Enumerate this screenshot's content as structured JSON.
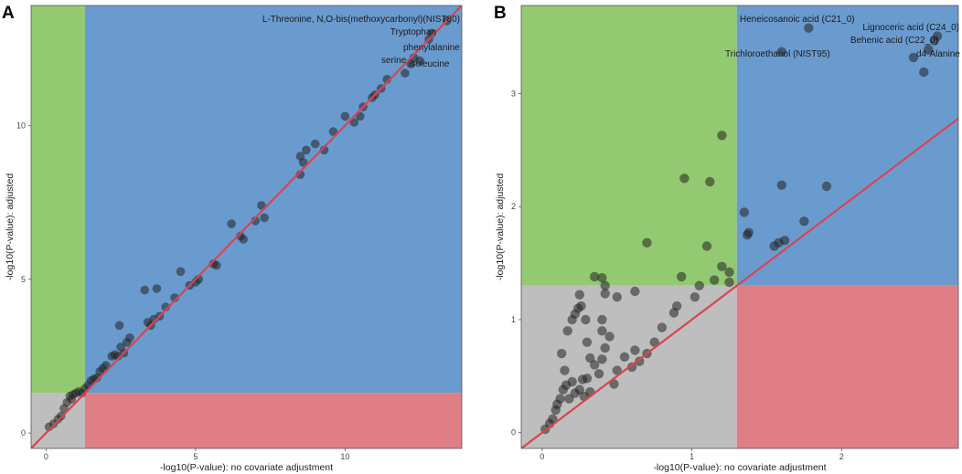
{
  "colors": {
    "green": "#93C970",
    "blue": "#6A9BCF",
    "red": "#E07E86",
    "gray": "#BEBEBE",
    "line": "#D94452",
    "point": "#222222"
  },
  "chart_data": [
    {
      "type": "scatter",
      "panel_label": "A",
      "xlabel": "-log10(P-value): no covariate adjustment",
      "ylabel": "-log10(P-value): adjusted",
      "xlim": [
        -0.5,
        13.9
      ],
      "ylim": [
        -0.5,
        13.9
      ],
      "xticks": [
        0,
        5,
        10
      ],
      "yticks": [
        0,
        5,
        10
      ],
      "threshold": 1.3,
      "reference_line": {
        "slope": 1,
        "intercept": 0
      },
      "annotations": [
        {
          "text": "L-Threonine, N,O-bis(methoxycarbonyl)(NIST80)",
          "x": 13.4,
          "y": 13.4
        },
        {
          "text": "Tryptophan",
          "x": 12.9,
          "y": 13.0
        },
        {
          "text": "phenylalanine",
          "x": 12.9,
          "y": 12.7
        },
        {
          "text": "serine",
          "x": 12.3,
          "y": 12.2
        },
        {
          "text": "isoleucine",
          "x": 12.5,
          "y": 12.1
        }
      ],
      "points": [
        {
          "x": 0.1,
          "y": 0.2
        },
        {
          "x": 0.25,
          "y": 0.3
        },
        {
          "x": 0.4,
          "y": 0.45
        },
        {
          "x": 0.5,
          "y": 0.55
        },
        {
          "x": 0.6,
          "y": 0.8
        },
        {
          "x": 0.7,
          "y": 1.0
        },
        {
          "x": 0.8,
          "y": 1.2
        },
        {
          "x": 0.9,
          "y": 1.25
        },
        {
          "x": 1.0,
          "y": 1.3
        },
        {
          "x": 1.1,
          "y": 1.35
        },
        {
          "x": 1.2,
          "y": 1.3
        },
        {
          "x": 0.85,
          "y": 1.1
        },
        {
          "x": 1.3,
          "y": 1.45
        },
        {
          "x": 1.4,
          "y": 1.55
        },
        {
          "x": 1.5,
          "y": 1.7
        },
        {
          "x": 1.6,
          "y": 1.75
        },
        {
          "x": 1.7,
          "y": 1.8
        },
        {
          "x": 1.8,
          "y": 2.0
        },
        {
          "x": 1.9,
          "y": 2.1
        },
        {
          "x": 2.0,
          "y": 2.2
        },
        {
          "x": 2.2,
          "y": 2.5
        },
        {
          "x": 2.3,
          "y": 2.55
        },
        {
          "x": 2.4,
          "y": 2.5
        },
        {
          "x": 2.5,
          "y": 2.8
        },
        {
          "x": 2.7,
          "y": 2.95
        },
        {
          "x": 2.8,
          "y": 3.1
        },
        {
          "x": 2.6,
          "y": 2.6
        },
        {
          "x": 2.45,
          "y": 3.5
        },
        {
          "x": 3.4,
          "y": 3.6
        },
        {
          "x": 3.6,
          "y": 3.7
        },
        {
          "x": 3.8,
          "y": 3.8
        },
        {
          "x": 3.5,
          "y": 3.5
        },
        {
          "x": 3.3,
          "y": 4.65
        },
        {
          "x": 3.7,
          "y": 4.7
        },
        {
          "x": 4.0,
          "y": 4.1
        },
        {
          "x": 4.3,
          "y": 4.4
        },
        {
          "x": 4.5,
          "y": 5.25
        },
        {
          "x": 4.8,
          "y": 4.8
        },
        {
          "x": 5.0,
          "y": 4.9
        },
        {
          "x": 5.1,
          "y": 5.0
        },
        {
          "x": 5.6,
          "y": 5.5
        },
        {
          "x": 5.7,
          "y": 5.45
        },
        {
          "x": 6.2,
          "y": 6.8
        },
        {
          "x": 6.5,
          "y": 6.4
        },
        {
          "x": 6.6,
          "y": 6.3
        },
        {
          "x": 7.0,
          "y": 6.9
        },
        {
          "x": 7.3,
          "y": 7.0
        },
        {
          "x": 7.2,
          "y": 7.4
        },
        {
          "x": 8.5,
          "y": 8.4
        },
        {
          "x": 8.6,
          "y": 8.8
        },
        {
          "x": 8.5,
          "y": 9.0
        },
        {
          "x": 8.7,
          "y": 9.2
        },
        {
          "x": 9.0,
          "y": 9.4
        },
        {
          "x": 9.3,
          "y": 9.2
        },
        {
          "x": 9.6,
          "y": 9.8
        },
        {
          "x": 10.0,
          "y": 10.3
        },
        {
          "x": 10.3,
          "y": 10.1
        },
        {
          "x": 10.5,
          "y": 10.3
        },
        {
          "x": 10.6,
          "y": 10.6
        },
        {
          "x": 10.9,
          "y": 10.9
        },
        {
          "x": 11.0,
          "y": 11.0
        },
        {
          "x": 11.2,
          "y": 11.2
        },
        {
          "x": 11.4,
          "y": 11.5
        },
        {
          "x": 12.0,
          "y": 11.7
        },
        {
          "x": 12.2,
          "y": 12.0
        },
        {
          "x": 12.3,
          "y": 12.2
        },
        {
          "x": 12.5,
          "y": 12.1
        },
        {
          "x": 12.8,
          "y": 12.8
        },
        {
          "x": 12.9,
          "y": 13.0
        },
        {
          "x": 13.4,
          "y": 13.4
        }
      ]
    },
    {
      "type": "scatter",
      "panel_label": "B",
      "xlabel": "-log10(P-value): no covariate adjustment",
      "ylabel": "-log10(P-value): adjusted",
      "xlim": [
        -0.14,
        2.78
      ],
      "ylim": [
        -0.14,
        3.78
      ],
      "xticks": [
        0,
        1,
        2
      ],
      "yticks": [
        0,
        1,
        2,
        3
      ],
      "threshold": 1.3,
      "reference_line": {
        "slope": 1,
        "intercept": 0
      },
      "annotations": [
        {
          "text": "Heneicosanoic acid (C21_0)",
          "x": 1.78,
          "y": 3.58
        },
        {
          "text": "Lignoceric acid (C24_0)",
          "x": 2.64,
          "y": 3.51
        },
        {
          "text": "Behenic acid (C22_0)",
          "x": 2.58,
          "y": 3.39
        },
        {
          "text": "Trichloroethanol (NIST95)",
          "x": 1.6,
          "y": 3.37
        },
        {
          "text": "d4-Alanine",
          "x": 2.48,
          "y": 3.32
        }
      ],
      "points": [
        {
          "x": 0.02,
          "y": 0.03
        },
        {
          "x": 0.05,
          "y": 0.08
        },
        {
          "x": 0.07,
          "y": 0.12
        },
        {
          "x": 0.09,
          "y": 0.2
        },
        {
          "x": 0.1,
          "y": 0.25
        },
        {
          "x": 0.12,
          "y": 0.3
        },
        {
          "x": 0.14,
          "y": 0.38
        },
        {
          "x": 0.16,
          "y": 0.42
        },
        {
          "x": 0.15,
          "y": 0.55
        },
        {
          "x": 0.2,
          "y": 0.45
        },
        {
          "x": 0.22,
          "y": 0.35
        },
        {
          "x": 0.25,
          "y": 0.38
        },
        {
          "x": 0.27,
          "y": 0.47
        },
        {
          "x": 0.3,
          "y": 0.48
        },
        {
          "x": 0.28,
          "y": 0.32
        },
        {
          "x": 0.32,
          "y": 0.36
        },
        {
          "x": 0.18,
          "y": 0.3
        },
        {
          "x": 0.13,
          "y": 0.7
        },
        {
          "x": 0.17,
          "y": 0.9
        },
        {
          "x": 0.2,
          "y": 1.0
        },
        {
          "x": 0.22,
          "y": 1.05
        },
        {
          "x": 0.24,
          "y": 1.1
        },
        {
          "x": 0.26,
          "y": 1.12
        },
        {
          "x": 0.25,
          "y": 1.22
        },
        {
          "x": 0.29,
          "y": 1.0
        },
        {
          "x": 0.3,
          "y": 0.8
        },
        {
          "x": 0.32,
          "y": 0.66
        },
        {
          "x": 0.35,
          "y": 0.6
        },
        {
          "x": 0.38,
          "y": 0.52
        },
        {
          "x": 0.4,
          "y": 0.65
        },
        {
          "x": 0.42,
          "y": 0.75
        },
        {
          "x": 0.4,
          "y": 0.9
        },
        {
          "x": 0.4,
          "y": 1.0
        },
        {
          "x": 0.45,
          "y": 0.85
        },
        {
          "x": 0.48,
          "y": 0.43
        },
        {
          "x": 0.5,
          "y": 0.55
        },
        {
          "x": 0.55,
          "y": 0.67
        },
        {
          "x": 0.6,
          "y": 0.58
        },
        {
          "x": 0.62,
          "y": 0.73
        },
        {
          "x": 0.65,
          "y": 0.63
        },
        {
          "x": 0.7,
          "y": 0.7
        },
        {
          "x": 0.75,
          "y": 0.8
        },
        {
          "x": 0.8,
          "y": 0.93
        },
        {
          "x": 0.88,
          "y": 1.06
        },
        {
          "x": 0.9,
          "y": 1.12
        },
        {
          "x": 0.42,
          "y": 1.23
        },
        {
          "x": 0.5,
          "y": 1.2
        },
        {
          "x": 0.62,
          "y": 1.25
        },
        {
          "x": 0.35,
          "y": 1.38
        },
        {
          "x": 0.4,
          "y": 1.37
        },
        {
          "x": 0.42,
          "y": 1.3
        },
        {
          "x": 0.7,
          "y": 1.68
        },
        {
          "x": 0.93,
          "y": 1.38
        },
        {
          "x": 1.02,
          "y": 1.2
        },
        {
          "x": 1.05,
          "y": 1.3
        },
        {
          "x": 1.1,
          "y": 1.65
        },
        {
          "x": 1.15,
          "y": 1.35
        },
        {
          "x": 1.2,
          "y": 1.47
        },
        {
          "x": 1.25,
          "y": 1.42
        },
        {
          "x": 1.25,
          "y": 1.33
        },
        {
          "x": 0.95,
          "y": 2.25
        },
        {
          "x": 1.12,
          "y": 2.22
        },
        {
          "x": 1.2,
          "y": 2.63
        },
        {
          "x": 1.35,
          "y": 1.95
        },
        {
          "x": 1.37,
          "y": 1.75
        },
        {
          "x": 1.38,
          "y": 1.77
        },
        {
          "x": 1.55,
          "y": 1.65
        },
        {
          "x": 1.58,
          "y": 1.68
        },
        {
          "x": 1.62,
          "y": 1.7
        },
        {
          "x": 1.6,
          "y": 2.19
        },
        {
          "x": 1.75,
          "y": 1.87
        },
        {
          "x": 1.9,
          "y": 2.18
        },
        {
          "x": 1.6,
          "y": 3.37
        },
        {
          "x": 1.78,
          "y": 3.58
        },
        {
          "x": 2.48,
          "y": 3.32
        },
        {
          "x": 2.55,
          "y": 3.19
        },
        {
          "x": 2.58,
          "y": 3.39
        },
        {
          "x": 2.64,
          "y": 3.51
        },
        {
          "x": 2.62,
          "y": 3.47
        }
      ]
    }
  ]
}
